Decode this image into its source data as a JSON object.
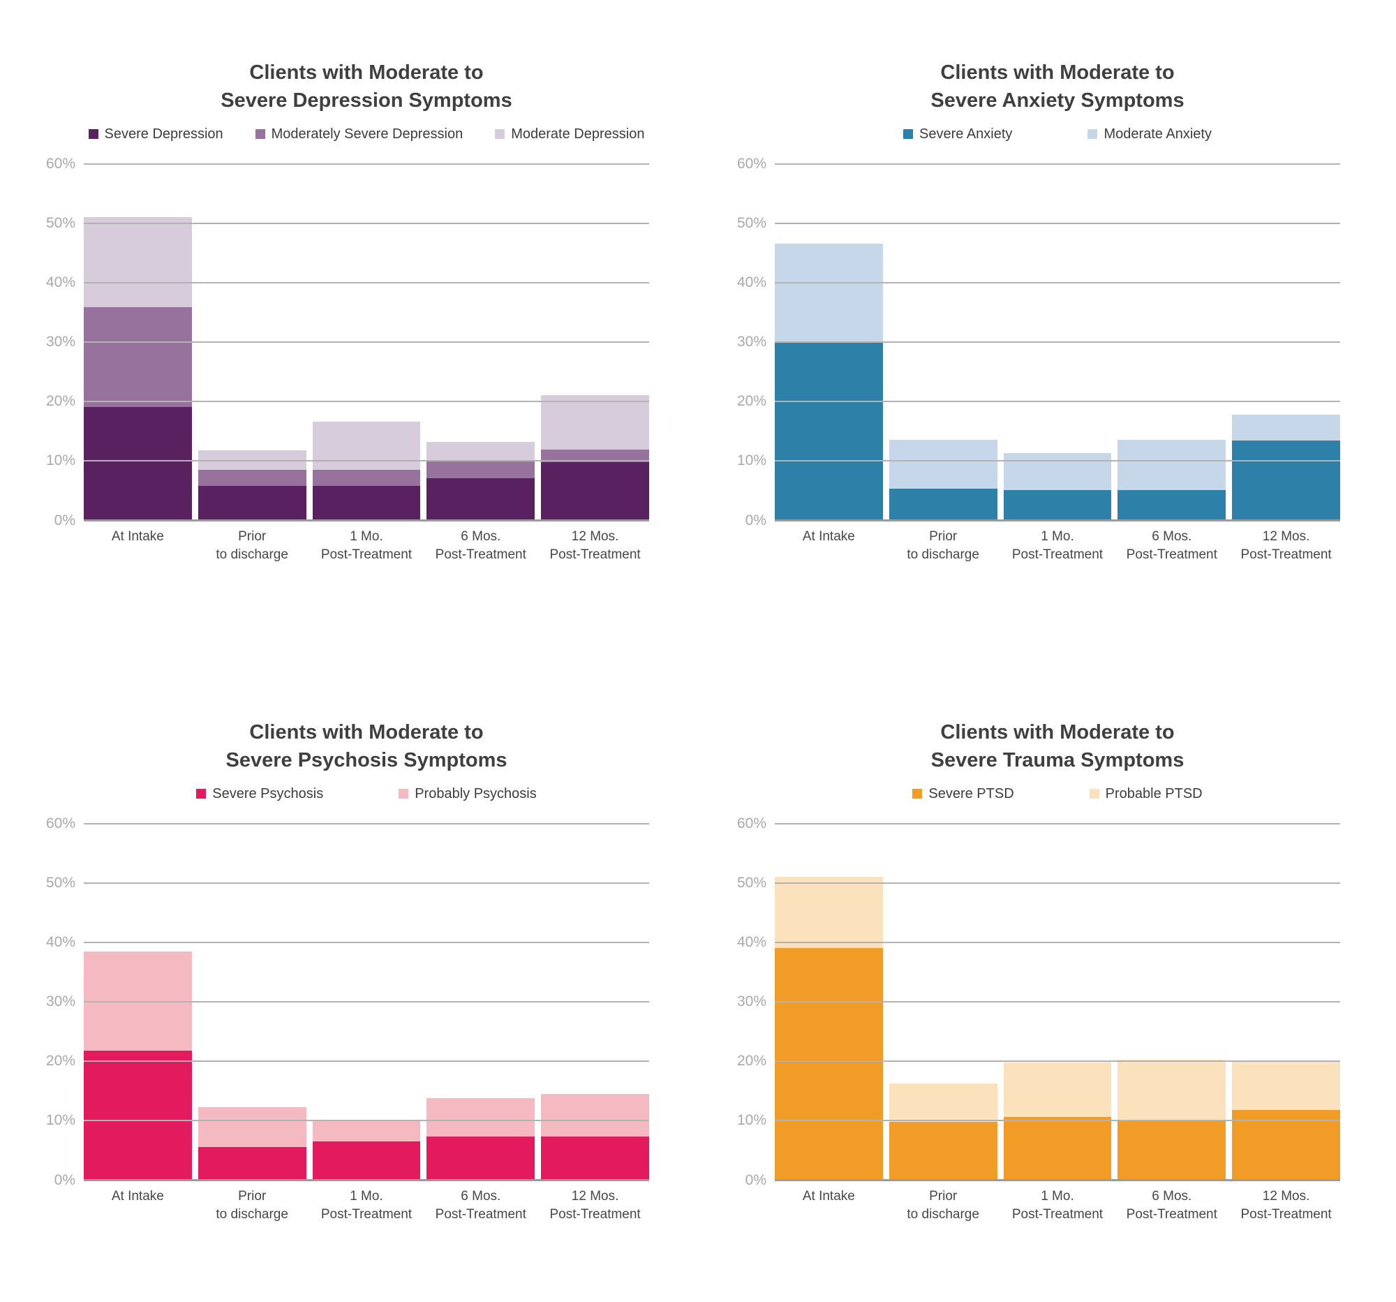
{
  "page": {
    "background": "#ffffff"
  },
  "styles": {
    "gridline_color": "#b3b2b2",
    "axis_line_color": "#9b9b9b",
    "tick_label_color": "#a9a9a9",
    "title_color": "#3f3f3f",
    "category_label_color": "#474747",
    "legend_label_color": "#3c3c3c"
  },
  "chart_data": [
    {
      "type": "bar",
      "subtype": "stacked",
      "title": "Clients with Moderate to Severe Depression Symptoms",
      "title_line1": "Clients with Moderate to",
      "title_line2": "Severe Depression Symptoms",
      "unit": "percent",
      "ylim": [
        0,
        60
      ],
      "yticks": [
        "60%",
        "50%",
        "40%",
        "30%",
        "20%",
        "10%",
        "0%"
      ],
      "grid": true,
      "legend_position": "top",
      "categories": [
        "At Intake",
        "Prior to discharge",
        "1 Mo. Post-Treatment",
        "6 Mos. Post-Treatment",
        "12 Mos. Post-Treatment"
      ],
      "category_lines": [
        [
          "At Intake"
        ],
        [
          "Prior",
          "to discharge"
        ],
        [
          "1 Mo.",
          "Post-Treatment"
        ],
        [
          "6 Mos.",
          "Post-Treatment"
        ],
        [
          "12 Mos.",
          "Post-Treatment"
        ]
      ],
      "series": [
        {
          "name": "Severe Depression",
          "color": "#5a2161",
          "values": [
            19.0,
            5.6,
            5.7,
            7.0,
            9.7
          ]
        },
        {
          "name": "Moderately Severe Depression",
          "color": "#96729c",
          "values": [
            16.8,
            2.8,
            2.6,
            2.9,
            2.1
          ]
        },
        {
          "name": "Moderate Depression",
          "color": "#d6ccdc",
          "values": [
            15.2,
            3.3,
            8.2,
            3.2,
            9.2
          ]
        }
      ]
    },
    {
      "type": "bar",
      "subtype": "stacked",
      "title": "Clients with Moderate to Severe Anxiety Symptoms",
      "title_line1": "Clients with Moderate to",
      "title_line2": "Severe Anxiety Symptoms",
      "unit": "percent",
      "ylim": [
        0,
        60
      ],
      "yticks": [
        "60%",
        "50%",
        "40%",
        "30%",
        "20%",
        "10%",
        "0%"
      ],
      "grid": true,
      "legend_position": "top",
      "categories": [
        "At Intake",
        "Prior to discharge",
        "1 Mo. Post-Treatment",
        "6 Mos. Post-Treatment",
        "12 Mos. Post-Treatment"
      ],
      "category_lines": [
        [
          "At Intake"
        ],
        [
          "Prior",
          "to discharge"
        ],
        [
          "1 Mo.",
          "Post-Treatment"
        ],
        [
          "6 Mos.",
          "Post-Treatment"
        ],
        [
          "12 Mos.",
          "Post-Treatment"
        ]
      ],
      "series": [
        {
          "name": "Severe Anxiety",
          "color": "#2d81a9",
          "values": [
            30.0,
            5.2,
            5.0,
            5.0,
            13.3
          ]
        },
        {
          "name": "Moderate Anxiety",
          "color": "#c5d7e8",
          "values": [
            16.5,
            8.2,
            6.2,
            8.4,
            4.3
          ]
        }
      ]
    },
    {
      "type": "bar",
      "subtype": "stacked",
      "title": "Clients with Moderate to Severe Psychosis Symptoms",
      "title_line1": "Clients with Moderate to",
      "title_line2": "Severe Psychosis Symptoms",
      "unit": "percent",
      "ylim": [
        0,
        60
      ],
      "yticks": [
        "60%",
        "50%",
        "40%",
        "30%",
        "20%",
        "10%",
        "0%"
      ],
      "grid": true,
      "legend_position": "top",
      "categories": [
        "At Intake",
        "Prior to discharge",
        "1 Mo. Post-Treatment",
        "6 Mos. Post-Treatment",
        "12 Mos. Post-Treatment"
      ],
      "category_lines": [
        [
          "At Intake"
        ],
        [
          "Prior",
          "to discharge"
        ],
        [
          "1 Mo.",
          "Post-Treatment"
        ],
        [
          "6 Mos.",
          "Post-Treatment"
        ],
        [
          "12 Mos.",
          "Post-Treatment"
        ]
      ],
      "series": [
        {
          "name": "Severe Psychosis",
          "color": "#e31a5d",
          "values": [
            21.7,
            5.4,
            6.4,
            7.2,
            7.2
          ]
        },
        {
          "name": "Probably Psychosis",
          "color": "#f5b9c1",
          "values": [
            16.7,
            6.7,
            3.5,
            6.4,
            7.2
          ]
        }
      ]
    },
    {
      "type": "bar",
      "subtype": "stacked",
      "title": "Clients with Moderate to Severe Trauma Symptoms",
      "title_line1": "Clients with Moderate to",
      "title_line2": "Severe Trauma Symptoms",
      "unit": "percent",
      "ylim": [
        0,
        60
      ],
      "yticks": [
        "60%",
        "50%",
        "40%",
        "30%",
        "20%",
        "10%",
        "0%"
      ],
      "grid": true,
      "legend_position": "top",
      "categories": [
        "At Intake",
        "Prior to discharge",
        "1 Mo. Post-Treatment",
        "6 Mos. Post-Treatment",
        "12 Mos. Post-Treatment"
      ],
      "category_lines": [
        [
          "At Intake"
        ],
        [
          "Prior",
          "to discharge"
        ],
        [
          "1 Mo.",
          "Post-Treatment"
        ],
        [
          "6 Mos.",
          "Post-Treatment"
        ],
        [
          "12 Mos.",
          "Post-Treatment"
        ]
      ],
      "series": [
        {
          "name": "Severe PTSD",
          "color": "#f09c26",
          "values": [
            39.0,
            9.6,
            10.5,
            10.0,
            11.6
          ]
        },
        {
          "name": "Probable PTSD",
          "color": "#fbe2bd",
          "values": [
            12.0,
            6.5,
            9.2,
            10.1,
            8.3
          ]
        }
      ]
    }
  ]
}
